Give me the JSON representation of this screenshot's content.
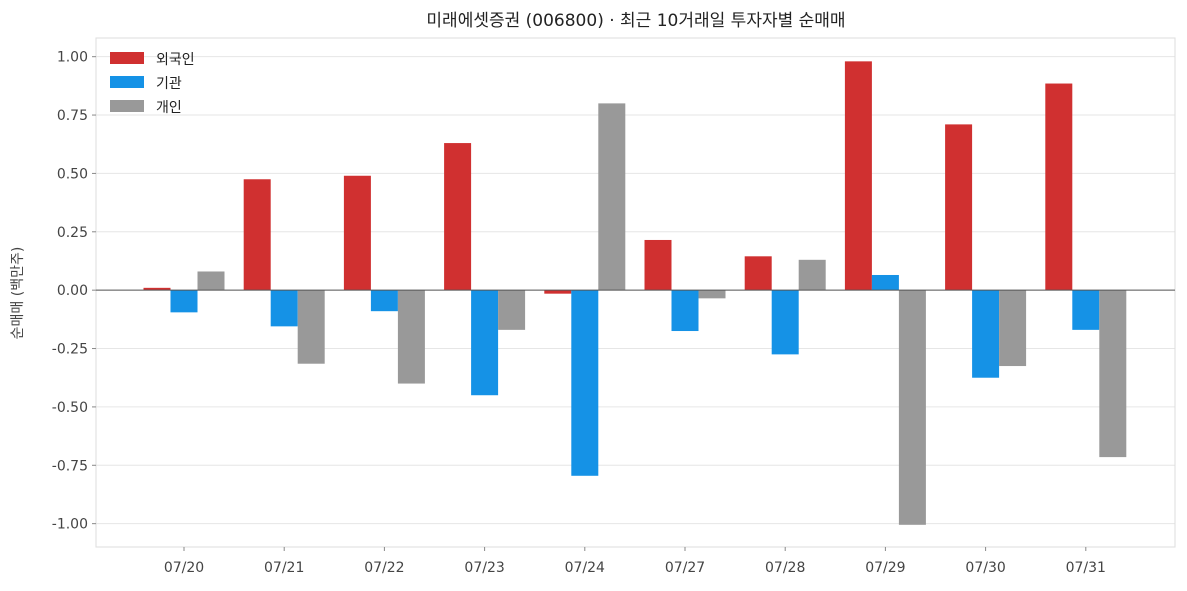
{
  "chart_data": {
    "type": "bar",
    "title": "미래에셋증권 (006800) · 최근 10거래일 투자자별 순매매",
    "xlabel": "",
    "ylabel": "순매매 (백만주)",
    "ylim": [
      -1.1,
      1.08
    ],
    "yticks": [
      -1.0,
      -0.75,
      -0.5,
      -0.25,
      0.0,
      0.25,
      0.5,
      0.75,
      1.0
    ],
    "ytick_labels": [
      "-1.00",
      "-0.75",
      "-0.50",
      "-0.25",
      "0.00",
      "0.25",
      "0.50",
      "0.75",
      "1.00"
    ],
    "categories": [
      "07/20",
      "07/21",
      "07/22",
      "07/23",
      "07/24",
      "07/27",
      "07/28",
      "07/29",
      "07/30",
      "07/31"
    ],
    "grid": true,
    "legend_position": "top-left",
    "series": [
      {
        "name": "외국인",
        "color": "#d03030",
        "values": [
          0.01,
          0.475,
          0.49,
          0.63,
          -0.015,
          0.215,
          0.145,
          0.98,
          0.71,
          0.885
        ]
      },
      {
        "name": "기관",
        "color": "#1592e6",
        "values": [
          -0.095,
          -0.155,
          -0.09,
          -0.45,
          -0.795,
          -0.175,
          -0.275,
          0.065,
          -0.375,
          -0.17
        ]
      },
      {
        "name": "개인",
        "color": "#999999",
        "values": [
          0.08,
          -0.315,
          -0.4,
          -0.17,
          0.8,
          -0.035,
          0.13,
          -1.005,
          -0.325,
          -0.715
        ]
      }
    ]
  }
}
